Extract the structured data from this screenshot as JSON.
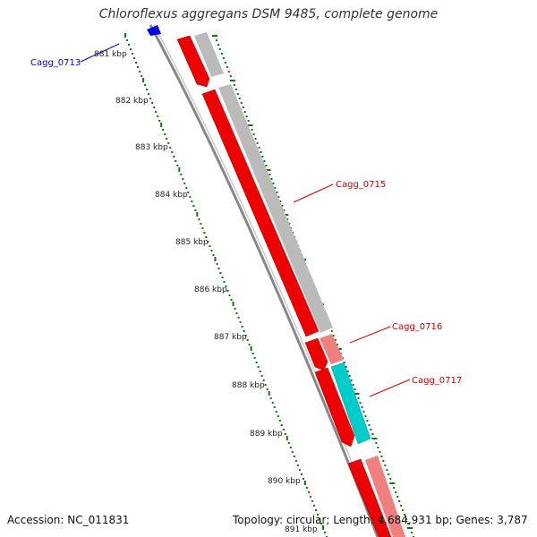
{
  "title": "Chloroflexus aggregans DSM 9485, complete genome",
  "footer": {
    "accession": "Accession: NC_011831",
    "topology": "Topology: circular; Length: 4,684,931 bp; Genes: 3,787"
  },
  "scale_ticks": [
    "881 kbp",
    "882 kbp",
    "883 kbp",
    "884 kbp",
    "885 kbp",
    "886 kbp",
    "887 kbp",
    "888 kbp",
    "889 kbp",
    "890 kbp",
    "891 kbp"
  ],
  "gene_labels": [
    {
      "text": "Cagg_0713",
      "color": "#0000cc"
    },
    {
      "text": "Cagg_0715",
      "color": "#cc0000"
    },
    {
      "text": "Cagg_0716",
      "color": "#cc0000"
    },
    {
      "text": "Cagg_0717",
      "color": "#cc0000"
    }
  ],
  "colors": {
    "cds": "#ee0000",
    "cds_highlight": "#00cccc",
    "feature_gray": "#bbbbbb",
    "feature_pink": "#f08080",
    "backbone": "#888888",
    "scale_dots": "#117711",
    "gene_blue": "#0000ee"
  }
}
